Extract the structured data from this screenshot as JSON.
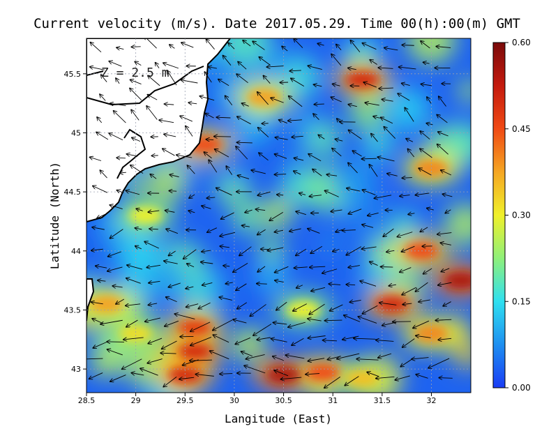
{
  "chart_data": {
    "type": "heatmap",
    "title": "Current velocity (m/s). Date 2017.05.29. Time 00(h):00(m) GMT",
    "xlabel": "Langitude (East)",
    "ylabel": "Latitude (North)",
    "annotation": "Z = 2.5 m",
    "xlim": [
      28.5,
      32.4
    ],
    "ylim": [
      42.8,
      45.8
    ],
    "x_ticks": [
      {
        "value": 28.5,
        "label": "28.5"
      },
      {
        "value": 29,
        "label": "29"
      },
      {
        "value": 29.5,
        "label": "29.5"
      },
      {
        "value": 30,
        "label": "30"
      },
      {
        "value": 30.5,
        "label": "30.5"
      },
      {
        "value": 31,
        "label": "31"
      },
      {
        "value": 31.5,
        "label": "31.5"
      },
      {
        "value": 32,
        "label": "32"
      }
    ],
    "y_ticks": [
      {
        "value": 43,
        "label": "43"
      },
      {
        "value": 43.5,
        "label": "43.5"
      },
      {
        "value": 44,
        "label": "44"
      },
      {
        "value": 44.5,
        "label": "44.5"
      },
      {
        "value": 45,
        "label": "45"
      },
      {
        "value": 45.5,
        "label": "45.5"
      }
    ],
    "grid": true,
    "colorbar": {
      "min": 0.0,
      "max": 0.6,
      "placement": "right",
      "ticks": [
        {
          "value": 0.0,
          "label": "0.00"
        },
        {
          "value": 0.15,
          "label": "0.15"
        },
        {
          "value": 0.3,
          "label": "0.30"
        },
        {
          "value": 0.45,
          "label": "0.45"
        },
        {
          "value": 0.6,
          "label": "0.60"
        }
      ],
      "colors": [
        "#1a3cf5",
        "#1e8ff0",
        "#2fe0f0",
        "#8ff07a",
        "#f0f02a",
        "#f5a623",
        "#f04a14",
        "#c41a0e",
        "#7a0a0a"
      ]
    },
    "speed_hotspots": [
      {
        "lon": 29.5,
        "lat": 42.95,
        "value": 0.5
      },
      {
        "lon": 29.6,
        "lat": 43.15,
        "value": 0.5
      },
      {
        "lon": 29.6,
        "lat": 43.35,
        "value": 0.47
      },
      {
        "lon": 30.5,
        "lat": 42.95,
        "value": 0.55
      },
      {
        "lon": 30.9,
        "lat": 42.97,
        "value": 0.45
      },
      {
        "lon": 31.3,
        "lat": 42.92,
        "value": 0.35
      },
      {
        "lon": 31.6,
        "lat": 43.55,
        "value": 0.5
      },
      {
        "lon": 32.3,
        "lat": 43.75,
        "value": 0.55
      },
      {
        "lon": 32.0,
        "lat": 43.3,
        "value": 0.4
      },
      {
        "lon": 31.9,
        "lat": 44.0,
        "value": 0.45
      },
      {
        "lon": 31.3,
        "lat": 45.45,
        "value": 0.5
      },
      {
        "lon": 32.0,
        "lat": 44.7,
        "value": 0.4
      },
      {
        "lon": 30.3,
        "lat": 45.3,
        "value": 0.38
      },
      {
        "lon": 29.7,
        "lat": 44.9,
        "value": 0.45
      },
      {
        "lon": 28.7,
        "lat": 43.55,
        "value": 0.38
      },
      {
        "lon": 30.7,
        "lat": 43.5,
        "value": 0.3
      },
      {
        "lon": 29.0,
        "lat": 43.3,
        "value": 0.32
      },
      {
        "lon": 29.1,
        "lat": 44.3,
        "value": 0.3
      }
    ]
  }
}
